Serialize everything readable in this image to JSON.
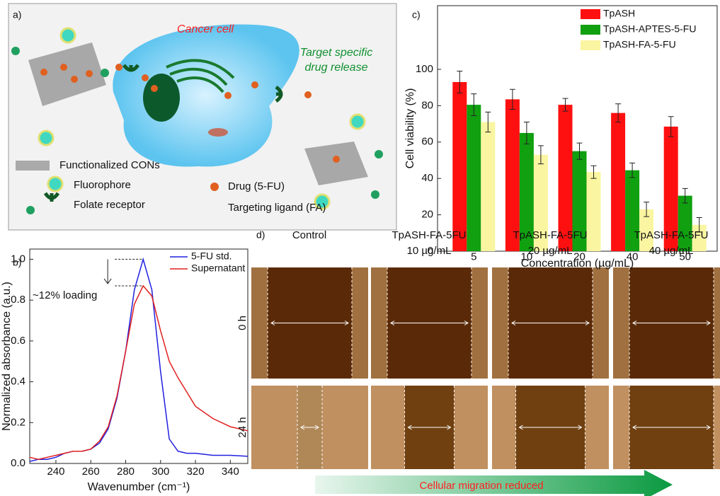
{
  "chart_data": [
    {
      "type": "bar",
      "panel": "c)",
      "categories": [
        "5",
        "10",
        "20",
        "40",
        "50"
      ],
      "series": [
        {
          "name": "TpASH",
          "color": "#ff1010",
          "values": [
            93,
            83.5,
            80.5,
            76,
            68.5
          ],
          "errors": [
            6,
            5.5,
            3.5,
            5,
            5.5
          ]
        },
        {
          "name": "TpASH-APTES-5-FU",
          "color": "#10a010",
          "values": [
            80.5,
            65,
            55,
            44.5,
            30.5
          ],
          "errors": [
            6,
            6,
            4.5,
            4,
            4
          ]
        },
        {
          "name": "TpASH-FA-5-FU",
          "color": "#faf5a0",
          "values": [
            71,
            53,
            43.5,
            23,
            14.5
          ],
          "errors": [
            5.5,
            5,
            3.5,
            4,
            4
          ]
        }
      ],
      "ylim": [
        0,
        135
      ],
      "yticks": [
        0,
        20,
        40,
        60,
        80,
        100
      ],
      "y_label": "Cell viability (%)",
      "x_label": "Concentration (µg/mL)",
      "legend": "top-right"
    },
    {
      "type": "line",
      "panel": "b)",
      "x": [
        225,
        230,
        235,
        240,
        245,
        250,
        255,
        260,
        265,
        270,
        275,
        280,
        285,
        290,
        295,
        300,
        305,
        310,
        315,
        320,
        330,
        340,
        350
      ],
      "series": [
        {
          "name": "5-FU std.",
          "color": "#2020e0",
          "values": [
            0.01,
            0.02,
            0.02,
            0.03,
            0.05,
            0.06,
            0.06,
            0.07,
            0.1,
            0.17,
            0.32,
            0.55,
            0.85,
            1.0,
            0.85,
            0.45,
            0.12,
            0.06,
            0.05,
            0.05,
            0.04,
            0.04,
            0.035
          ]
        },
        {
          "name": "Supernatant",
          "color": "#e02020",
          "values": [
            0.03,
            0.02,
            0.03,
            0.04,
            0.05,
            0.06,
            0.06,
            0.07,
            0.11,
            0.18,
            0.33,
            0.55,
            0.78,
            0.87,
            0.82,
            0.65,
            0.5,
            0.42,
            0.35,
            0.28,
            0.22,
            0.18,
            0.16
          ]
        }
      ],
      "xlim": [
        225,
        350
      ],
      "xticks": [
        240,
        260,
        280,
        300,
        320,
        340
      ],
      "ylim": [
        0,
        1.05
      ],
      "yticks": [
        {
          "value": 0,
          "label": "0.0"
        },
        {
          "value": 0.2,
          "label": "0.2"
        },
        {
          "value": 0.4,
          "label": "0.4"
        },
        {
          "value": 0.6,
          "label": "0.6"
        },
        {
          "value": 0.8,
          "label": "0.8"
        },
        {
          "value": 1.0,
          "label": "1.0"
        }
      ],
      "x_label": "Wavenumber (cm⁻¹)",
      "y_label": "Normalized absorbance (a.u.)",
      "annotation": "~12% loading",
      "legend": "top-right"
    }
  ],
  "scheme": {
    "panel": "a)",
    "cell": "Cancer cell",
    "release": [
      "Target specific",
      "drug release"
    ],
    "legend": [
      "Functionalized CONs",
      "Fluorophore",
      "Folate receptor",
      "Drug (5-FU)",
      "Targeting ligand (FA)"
    ]
  },
  "micrographs": {
    "panel": "d)",
    "columns": [
      [
        "Control"
      ],
      [
        "TpASH-FA-5FU",
        "10 µg/mL"
      ],
      [
        "TpASH-FA-5FU",
        "20 µg/mL"
      ],
      [
        "TpASH-FA-5FU",
        "40 µg/mL"
      ]
    ],
    "rows": [
      "0 h",
      "24 h"
    ],
    "trend": "Cellular migration reduced"
  }
}
